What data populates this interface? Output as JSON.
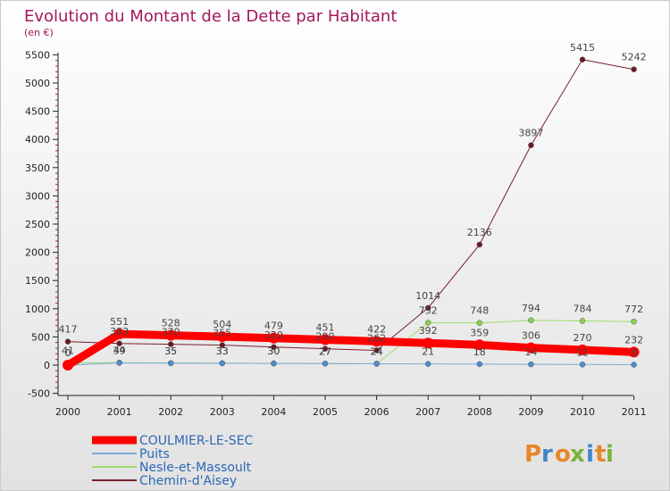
{
  "colors": {
    "title": "#a3195b",
    "legend_text": "#2b67b5",
    "logo_letters": [
      "#e8862a",
      "#3f86c6",
      "#e8862a",
      "#7ab33c",
      "#3f86c6",
      "#7ab33c"
    ]
  },
  "logo": {
    "text": "Proxiti",
    "letters": [
      "P",
      "r",
      "o",
      "x",
      "i",
      "t",
      "i"
    ]
  },
  "chart_data": {
    "type": "line",
    "title": "Evolution du Montant de la Dette par Habitant",
    "subtitle": "(en €)",
    "xlabel": "",
    "ylabel": "",
    "categories": [
      "2000",
      "2001",
      "2002",
      "2003",
      "2004",
      "2005",
      "2006",
      "2007",
      "2008",
      "2009",
      "2010",
      "2011"
    ],
    "ylim": [
      -500,
      5500
    ],
    "yticks": [
      -500,
      0,
      500,
      1000,
      1500,
      2000,
      2500,
      3000,
      3500,
      4000,
      4500,
      5000,
      5500
    ],
    "grid": false,
    "legend_position": "bottom-left",
    "series": [
      {
        "name": "Chemin-d'Aisey",
        "color": "#7a1f2e",
        "marker": "#6b1a24",
        "width": 1,
        "values": [
          417,
          383,
          370,
          355,
          320,
          290,
          262,
          1014,
          2136,
          3897,
          5415,
          5242
        ],
        "labels": [
          "417",
          "383",
          "370",
          "355",
          "320",
          "290",
          "262",
          "1014",
          "2136",
          "3897",
          "5415",
          "5242"
        ]
      },
      {
        "name": "Nesle-et-Massoult",
        "color": "#9fdd6a",
        "marker": "#8ccf4d",
        "width": 1,
        "values": [
          41,
          44,
          35,
          33,
          30,
          27,
          24,
          752,
          748,
          794,
          784,
          772
        ],
        "labels": [
          "41",
          "44",
          "35",
          "33",
          "30",
          "27",
          "24",
          "752",
          "748",
          "794",
          "784",
          "772"
        ]
      },
      {
        "name": "Puits",
        "color": "#7aa8d6",
        "marker": "#4d8ccf",
        "width": 1,
        "values": [
          0,
          39,
          35,
          33,
          30,
          27,
          24,
          21,
          18,
          14,
          11,
          8
        ],
        "labels": [
          "0",
          "39",
          "35",
          "33",
          "30",
          "27",
          "24",
          "21",
          "18",
          "14",
          "11",
          "8"
        ]
      },
      {
        "name": "COULMIER-LE-SEC",
        "color": "#ff0000",
        "marker": "#ff0000",
        "width": 9,
        "values": [
          0,
          551,
          528,
          504,
          479,
          451,
          422,
          392,
          359,
          306,
          270,
          232
        ],
        "labels": [
          "0",
          "551",
          "528",
          "504",
          "479",
          "451",
          "422",
          "392",
          "359",
          "306",
          "270",
          "232"
        ]
      }
    ],
    "legend_order": [
      "COULMIER-LE-SEC",
      "Puits",
      "Nesle-et-Massoult",
      "Chemin-d'Aisey"
    ]
  }
}
